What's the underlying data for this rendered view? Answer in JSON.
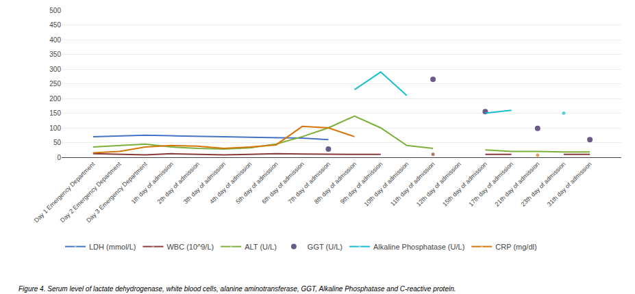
{
  "chart_data": {
    "type": "line",
    "categories": [
      "Day 1 Emergency Department",
      "Day 2 Emergency Department",
      "Day 3 Emergency Department",
      "1th day of admission",
      "2th day of admission",
      "3th day of admission",
      "4th day of admission",
      "5th day of admission",
      "6th day of admission",
      "7th day of admission",
      "8th day of admission",
      "9th day of admission",
      "10th day of admission",
      "11th day of admission",
      "12th day of admission",
      "15th day of admission",
      "17th day of admission",
      "21th day of admission",
      "23th day of admission",
      "31th day of admission"
    ],
    "series": [
      {
        "name": "LDH (mmol/L)",
        "color": "#4472C4",
        "type": "line",
        "values": [
          70,
          72,
          75,
          73,
          72,
          70,
          68,
          67,
          65,
          60,
          null,
          null,
          null,
          null,
          null,
          null,
          null,
          null,
          null,
          null
        ]
      },
      {
        "name": "WBC (10^9/L)",
        "color": "#8B3A3A",
        "type": "line",
        "values": [
          12,
          10,
          8,
          12,
          10,
          8,
          10,
          12,
          11,
          10,
          10,
          10,
          null,
          10,
          null,
          10,
          10,
          null,
          10,
          10
        ]
      },
      {
        "name": "ALT (U/L)",
        "color": "#7CAF3A",
        "type": "line",
        "values": [
          35,
          40,
          45,
          35,
          30,
          28,
          32,
          45,
          70,
          100,
          140,
          100,
          40,
          30,
          null,
          25,
          20,
          20,
          18,
          18
        ]
      },
      {
        "name": "GGT (U/L)",
        "color": "#6B5B8B",
        "type": "scatter",
        "marker": "dot",
        "values": [
          null,
          null,
          null,
          null,
          null,
          null,
          null,
          null,
          null,
          28,
          null,
          null,
          null,
          265,
          null,
          155,
          null,
          98,
          null,
          60
        ]
      },
      {
        "name": "Alkaline Phosphatase (U/L)",
        "color": "#17BECF",
        "type": "line",
        "values": [
          null,
          null,
          null,
          null,
          null,
          null,
          null,
          null,
          null,
          null,
          230,
          290,
          210,
          null,
          null,
          150,
          160,
          null,
          150,
          null
        ]
      },
      {
        "name": "CRP (mg/dl)",
        "color": "#D4760A",
        "type": "line",
        "values": [
          15,
          20,
          35,
          40,
          38,
          30,
          35,
          42,
          105,
          100,
          70,
          null,
          null,
          null,
          null,
          null,
          null,
          7,
          null,
          null
        ]
      }
    ],
    "ylim": [
      0,
      500
    ],
    "yticks": [
      0,
      50,
      100,
      150,
      200,
      250,
      300,
      350,
      400,
      450,
      500
    ],
    "grid": true,
    "legend": "bottom",
    "annotations": [
      "Figure 4. Serum level of lactate dehydrogenase, white blood cells, alanine aminotransferase, GGT, Alkaline Phosphatase and C-reactive protein."
    ]
  }
}
